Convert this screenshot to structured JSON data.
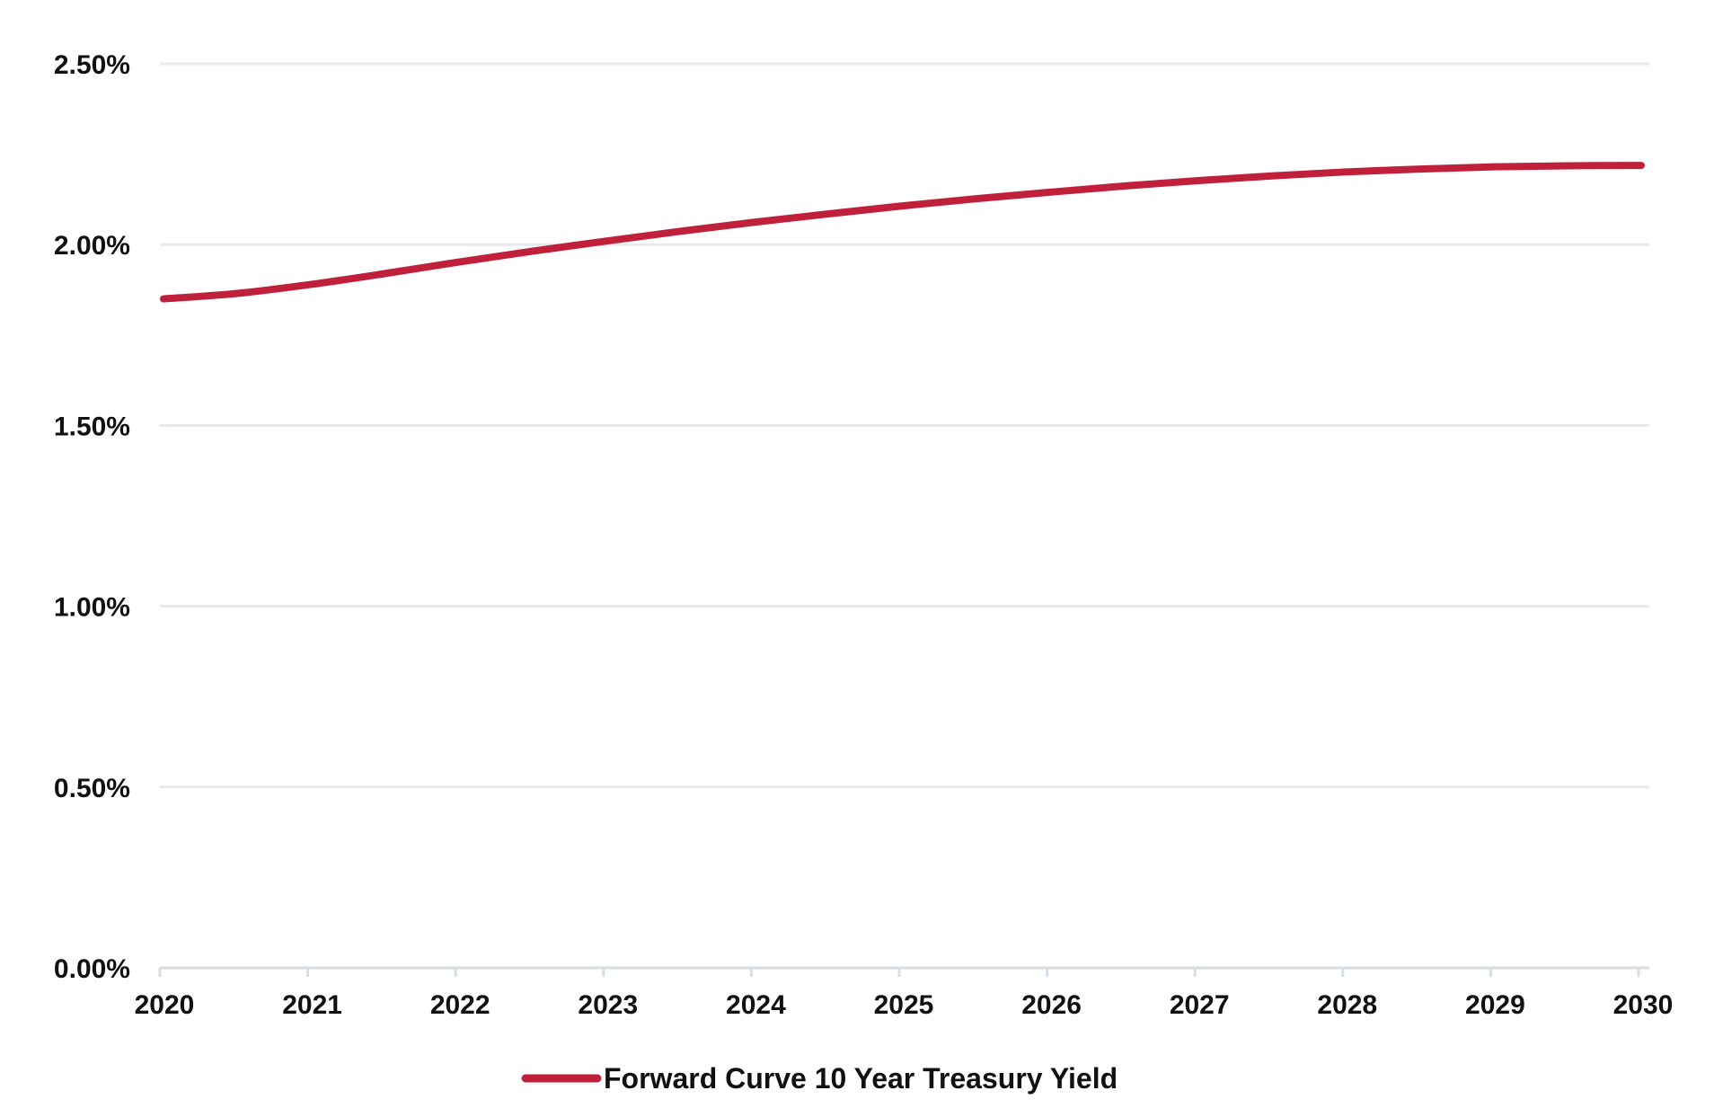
{
  "colors": {
    "series": "#C0203A",
    "grid": "#E4EAEE",
    "axis": "#D7DEE3",
    "text": "#111111"
  },
  "chart_data": {
    "type": "line",
    "title": "",
    "xlabel": "",
    "ylabel": "",
    "xlim": [
      2020,
      2030
    ],
    "ylim": [
      0,
      2.5
    ],
    "y_unit": "%",
    "grid": true,
    "legend_position": "bottom-center",
    "x_ticks": [
      "2020",
      "2021",
      "2022",
      "2023",
      "2024",
      "2025",
      "2026",
      "2027",
      "2028",
      "2029",
      "2030"
    ],
    "y_ticks": [
      "0.00%",
      "0.50%",
      "1.00%",
      "1.50%",
      "2.00%",
      "2.50%"
    ],
    "series": [
      {
        "name": "Forward Curve 10 Year Treasury Yield",
        "x": [
          2020,
          2020.5,
          2021,
          2021.5,
          2022,
          2022.5,
          2023,
          2023.5,
          2024,
          2024.5,
          2025,
          2025.5,
          2026,
          2026.5,
          2027,
          2027.5,
          2028,
          2028.5,
          2029,
          2029.5,
          2030
        ],
        "y": [
          1.85,
          1.865,
          1.89,
          1.92,
          1.952,
          1.982,
          2.01,
          2.037,
          2.062,
          2.085,
          2.107,
          2.127,
          2.145,
          2.162,
          2.177,
          2.19,
          2.201,
          2.209,
          2.215,
          2.218,
          2.219
        ]
      }
    ]
  }
}
